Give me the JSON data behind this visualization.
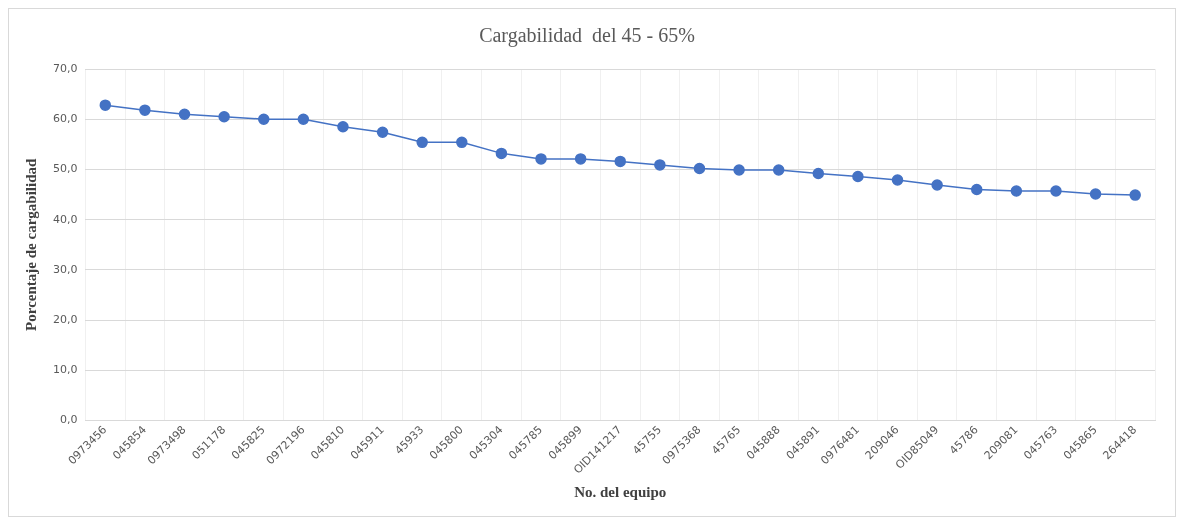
{
  "chart_data": {
    "type": "line",
    "title": "Cargabilidad  del 45 - 65%",
    "xlabel": "No. del equipo",
    "ylabel": "Porcentaje de cargabilidad",
    "categories": [
      "0973456",
      "045854",
      "0973498",
      "051178",
      "045825",
      "0972196",
      "045810",
      "045911",
      "45933",
      "045800",
      "045304",
      "045785",
      "045899",
      "OID141217",
      "45755",
      "0975368",
      "45765",
      "045888",
      "045891",
      "0976481",
      "209046",
      "OID85049",
      "45786",
      "209081",
      "045763",
      "045865",
      "264418"
    ],
    "series": [
      {
        "color": "#4472c4",
        "values": [
          62.8,
          61.8,
          61.0,
          60.5,
          60.0,
          60.0,
          58.5,
          57.4,
          55.4,
          55.4,
          53.2,
          52.1,
          52.1,
          51.6,
          50.9,
          50.2,
          49.9,
          49.9,
          49.2,
          48.6,
          47.9,
          46.9,
          46.0,
          45.7,
          45.7,
          45.1,
          44.9
        ]
      }
    ],
    "ylim": [
      0,
      70
    ],
    "yticks": [
      {
        "value": 0,
        "label": "0,0"
      },
      {
        "value": 10,
        "label": "10,0"
      },
      {
        "value": 20,
        "label": "20,0"
      },
      {
        "value": 30,
        "label": "30,0"
      },
      {
        "value": 40,
        "label": "40,0"
      },
      {
        "value": 50,
        "label": "50,0"
      },
      {
        "value": 60,
        "label": "60,0"
      },
      {
        "value": 70,
        "label": "70,0"
      }
    ],
    "grid": true,
    "marker": "circle",
    "line_style": "solid"
  }
}
